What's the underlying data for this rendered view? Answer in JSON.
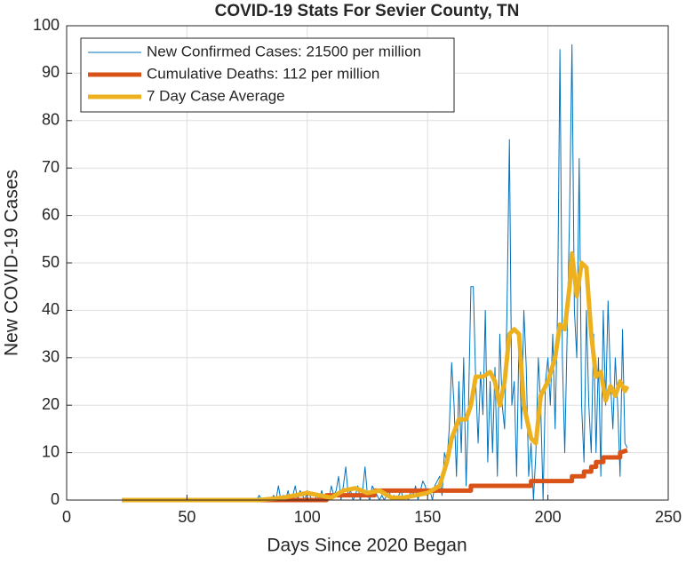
{
  "chart_data": {
    "type": "line",
    "title": "COVID-19 Stats For Sevier County, TN",
    "x_label": "Days Since 2020 Began",
    "y_label": "New COVID-19 Cases",
    "xlim": [
      0,
      250
    ],
    "xticks": [
      0,
      50,
      100,
      150,
      200,
      250
    ],
    "ylim": [
      0,
      100
    ],
    "yticks": [
      0,
      10,
      20,
      30,
      40,
      50,
      60,
      70,
      80,
      90,
      100
    ],
    "grid": true,
    "legend": "upper-left",
    "series": [
      {
        "name": "New Confirmed Cases: 21500 per million",
        "color": "#0072bd",
        "x": [
          75,
          76,
          77,
          78,
          79,
          80,
          81,
          82,
          83,
          84,
          85,
          86,
          87,
          88,
          89,
          90,
          91,
          92,
          93,
          94,
          95,
          96,
          97,
          98,
          99,
          100,
          101,
          102,
          103,
          104,
          105,
          106,
          107,
          108,
          109,
          110,
          111,
          112,
          113,
          114,
          115,
          116,
          117,
          118,
          119,
          120,
          121,
          122,
          123,
          124,
          125,
          126,
          127,
          128,
          129,
          130,
          131,
          132,
          133,
          134,
          135,
          136,
          137,
          138,
          139,
          140,
          141,
          142,
          143,
          144,
          145,
          146,
          147,
          148,
          149,
          150,
          151,
          152,
          153,
          154,
          155,
          156,
          157,
          158,
          159,
          160,
          161,
          162,
          163,
          164,
          165,
          166,
          167,
          168,
          169,
          170,
          171,
          172,
          173,
          174,
          175,
          176,
          177,
          178,
          179,
          180,
          181,
          182,
          183,
          184,
          185,
          186,
          187,
          188,
          189,
          190,
          191,
          192,
          193,
          194,
          195,
          196,
          197,
          198,
          199,
          200,
          201,
          202,
          203,
          204,
          205,
          206,
          207,
          208,
          209,
          210,
          211,
          212,
          213,
          214,
          215,
          216,
          217,
          218,
          219,
          220,
          221,
          222,
          223,
          224,
          225,
          226,
          227,
          228,
          229,
          230,
          231,
          232,
          233
        ],
        "values": [
          0,
          0,
          0,
          0,
          0,
          1,
          0,
          0,
          0,
          0,
          0,
          1,
          0,
          3,
          0,
          1,
          0,
          2,
          0,
          1,
          3,
          0,
          2,
          1,
          0,
          2,
          1,
          0,
          0,
          1,
          0,
          2,
          0,
          1,
          0,
          3,
          1,
          2,
          5,
          0,
          3,
          7,
          1,
          2,
          0,
          1,
          3,
          0,
          2,
          7,
          1,
          0,
          3,
          2,
          1,
          0,
          1,
          0,
          1,
          2,
          0,
          1,
          0,
          1,
          2,
          0,
          1,
          0,
          2,
          1,
          3,
          0,
          2,
          4,
          3,
          1,
          2,
          0,
          3,
          4,
          5,
          1,
          10,
          8,
          15,
          29,
          20,
          5,
          25,
          10,
          30,
          3,
          20,
          45,
          45,
          25,
          12,
          27,
          18,
          40,
          8,
          25,
          10,
          28,
          5,
          35,
          20,
          15,
          40,
          76,
          20,
          25,
          5,
          35,
          15,
          40,
          28,
          5,
          12,
          0,
          10,
          30,
          20,
          0,
          25,
          30,
          20,
          35,
          15,
          40,
          95,
          30,
          10,
          35,
          60,
          96,
          40,
          30,
          72,
          20,
          8,
          40,
          20,
          10,
          35,
          10,
          30,
          5,
          40,
          20,
          42,
          25,
          15,
          30,
          20,
          5,
          36,
          12,
          11
        ]
      },
      {
        "name": "Cumulative Deaths: 112 per million",
        "color": "#d95319",
        "x": [
          23,
          100,
          108,
          108,
          128,
          128,
          168,
          168,
          193,
          193,
          210,
          210,
          215,
          215,
          218,
          218,
          220,
          220,
          223,
          223,
          230,
          230,
          233
        ],
        "values": [
          0,
          0,
          0,
          1,
          1,
          2,
          2,
          3,
          3,
          4,
          4,
          5,
          5,
          6,
          6,
          7,
          7,
          8,
          8,
          9,
          9,
          10,
          10.5
        ]
      },
      {
        "name": "7 Day Case Average",
        "color": "#edb120",
        "x": [
          23,
          80,
          90,
          95,
          100,
          105,
          110,
          115,
          120,
          125,
          130,
          135,
          140,
          145,
          150,
          155,
          158,
          160,
          163,
          166,
          168,
          170,
          173,
          176,
          178,
          180,
          182,
          184,
          186,
          188,
          190,
          193,
          195,
          197,
          200,
          203,
          205,
          207,
          209,
          210,
          212,
          214,
          216,
          218,
          220,
          222,
          224,
          226,
          228,
          230,
          232,
          233
        ],
        "values": [
          0,
          0,
          0.5,
          1,
          1.5,
          1,
          0.5,
          2,
          2.5,
          1.5,
          2,
          0.5,
          0.5,
          1,
          1.5,
          3,
          8,
          13,
          17,
          17,
          20,
          26,
          26,
          27,
          25,
          20,
          25,
          35,
          36,
          35,
          20,
          13,
          12,
          22,
          25,
          30,
          37,
          36,
          45,
          52,
          43,
          50,
          49,
          35,
          26,
          27,
          21,
          24,
          22,
          25,
          23,
          24
        ]
      }
    ]
  }
}
